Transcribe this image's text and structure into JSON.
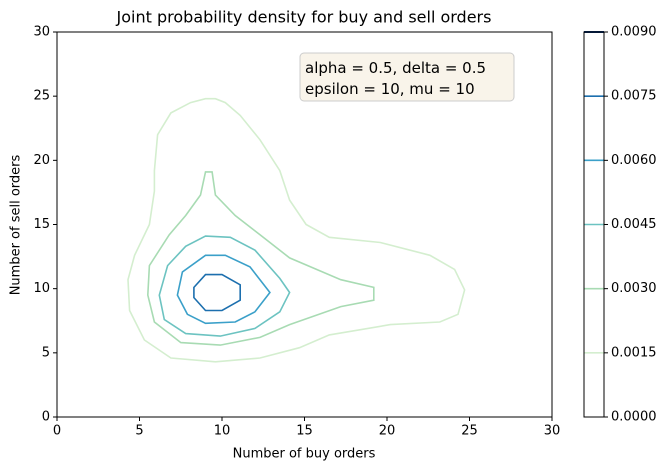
{
  "chart_data": {
    "type": "contour",
    "title": "Joint probability density for buy and sell orders",
    "x_label": "Number of buy orders",
    "y_label": "Number of sell orders",
    "xlim": [
      0,
      30
    ],
    "ylim": [
      0,
      30
    ],
    "xticks": [
      0,
      5,
      10,
      15,
      20,
      25,
      30
    ],
    "yticks": [
      0,
      5,
      10,
      15,
      20,
      25,
      30
    ],
    "annotation": [
      "alpha = 0.5, delta = 0.5",
      "epsilon = 10, mu = 10"
    ],
    "series": [
      {
        "level": 0.0015,
        "color": "#d4eecf",
        "x": [
          5.9,
          6.1,
          6.9,
          8.1,
          9.0,
          9.6,
          10.2,
          11.1,
          12.3,
          13.5,
          14.1,
          15.1,
          16.5,
          19.6,
          22.6,
          24.1,
          24.7,
          24.3,
          23.2,
          20.2,
          16.5,
          14.7,
          12.3,
          9.6,
          6.9,
          5.3,
          4.4,
          4.3,
          4.7,
          5.6,
          5.9
        ],
        "y": [
          19.2,
          22.0,
          23.7,
          24.5,
          24.8,
          24.8,
          24.5,
          23.5,
          21.6,
          19.2,
          16.9,
          15.0,
          14.0,
          13.6,
          12.6,
          11.5,
          9.9,
          8.0,
          7.4,
          7.2,
          6.4,
          5.4,
          4.6,
          4.3,
          4.6,
          6.0,
          8.3,
          10.7,
          12.6,
          15.0,
          17.6
        ]
      },
      {
        "level": 0.003,
        "color": "#a8dbb3",
        "x": [
          9.0,
          9.4,
          9.6,
          10.8,
          12.3,
          14.1,
          17.2,
          19.2,
          19.2,
          17.2,
          14.1,
          12.3,
          9.9,
          7.5,
          5.9,
          5.5,
          5.6,
          6.8,
          7.8,
          8.7
        ],
        "y": [
          19.1,
          19.1,
          17.3,
          15.7,
          14.2,
          12.4,
          10.7,
          10.1,
          9.1,
          8.6,
          7.2,
          6.2,
          5.6,
          5.8,
          7.4,
          9.5,
          11.8,
          14.2,
          15.7,
          17.3
        ]
      },
      {
        "level": 0.0045,
        "color": "#6cc3c1",
        "x": [
          9.0,
          10.5,
          12.0,
          13.5,
          14.1,
          13.5,
          12.0,
          9.9,
          7.8,
          6.5,
          6.2,
          6.7,
          7.8
        ],
        "y": [
          14.1,
          14.0,
          13.0,
          10.8,
          9.7,
          8.2,
          6.9,
          6.3,
          6.5,
          7.6,
          9.5,
          11.8,
          13.3
        ]
      },
      {
        "level": 0.006,
        "color": "#3ba0c9",
        "x": [
          9.0,
          10.2,
          11.7,
          12.9,
          12.0,
          10.8,
          9.0,
          7.9,
          7.3,
          7.6
        ],
        "y": [
          12.6,
          12.6,
          11.7,
          9.7,
          8.2,
          7.4,
          7.3,
          8.0,
          9.5,
          11.3
        ]
      },
      {
        "level": 0.0075,
        "color": "#1c6fae",
        "x": [
          9.0,
          10.0,
          11.1,
          11.1,
          10.0,
          9.0,
          8.3,
          8.3
        ],
        "y": [
          11.1,
          11.1,
          10.3,
          9.1,
          8.3,
          8.3,
          9.3,
          10.1
        ]
      }
    ],
    "colorbar": {
      "lim": [
        0,
        0.009
      ],
      "top_color": "#08306b",
      "ticks": [
        {
          "value": 0,
          "label": "0.0000"
        },
        {
          "value": 0.0015,
          "label": "0.0015"
        },
        {
          "value": 0.003,
          "label": "0.0030"
        },
        {
          "value": 0.0045,
          "label": "0.0045"
        },
        {
          "value": 0.006,
          "label": "0.0060"
        },
        {
          "value": 0.0075,
          "label": "0.0075"
        },
        {
          "value": 0.009,
          "label": "0.0090"
        }
      ]
    }
  }
}
